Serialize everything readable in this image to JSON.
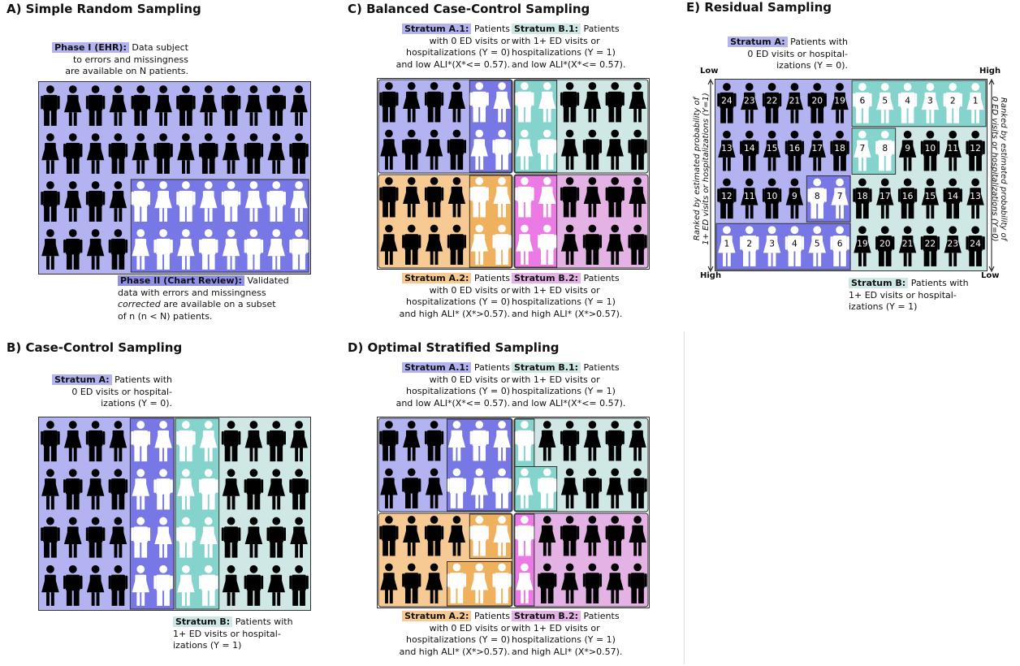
{
  "colors": {
    "blue": "#b3b3f2",
    "blue_dark": "#7777e6",
    "teal": "#cfe8e6",
    "teal_dark": "#85d3cd",
    "orange": "#f6ca92",
    "pink": "#e4b2e4",
    "pink_dark": "#ec7ae4",
    "figure": "#000000",
    "selected": "#ffffff"
  },
  "icons": [
    "person-male-icon",
    "person-female-icon"
  ],
  "panelA": {
    "title": "A) Simple Random Sampling",
    "phase1": {
      "head": "Phase I (EHR):",
      "l1": "Data subject",
      "l2": "to errors and missingness",
      "l3": "are available on N patients."
    },
    "phase2": {
      "head": "Phase II (Chart Review):",
      "l1": "Validated",
      "l2": "data with errors and missingness",
      "l3a": "corrected",
      "l3b": " are available on a subset",
      "l4": "of n (n < N) patients."
    }
  },
  "panelB": {
    "title": "B) Case-Control Sampling",
    "strataA": {
      "head": "Stratum A:",
      "l1": "Patients with",
      "l2": "0 ED visits or hospital-",
      "l3": "izations (Y = 0)."
    },
    "strataB": {
      "head": "Stratum B:",
      "l1": "Patients with",
      "l2": "1+ ED visits or hospital-",
      "l3": "izations (Y = 1)"
    }
  },
  "panelC": {
    "title": "C) Balanced Case-Control Sampling",
    "a1": {
      "head": "Stratum A.1:",
      "l1": "Patients",
      "l2": "with 0 ED visits or",
      "l3": "hospitalizations (Y = 0)",
      "l4": "and low ALI*(X*<= 0.57)."
    },
    "b1": {
      "head": "Stratum B.1:",
      "l1": "Patients",
      "l2": "with 1+ ED visits or",
      "l3": "hospitalizations (Y = 1)",
      "l4": "and low ALI*(X*<= 0.57)."
    },
    "a2": {
      "head": "Stratum A.2:",
      "l1": "Patients",
      "l2": "with 0 ED visits or",
      "l3": "hospitalizations (Y = 0)",
      "l4": "and high ALI* (X*>0.57)."
    },
    "b2": {
      "head": "Stratum B.2:",
      "l1": "Patients",
      "l2": "with 1+ ED visits or",
      "l3": "hospitalizations (Y = 1)",
      "l4": "and high ALI* (X*>0.57)."
    }
  },
  "panelD": {
    "title": "D) Optimal Stratified Sampling",
    "a1": {
      "head": "Stratum A.1:",
      "l1": "Patients",
      "l2": "with 0 ED visits or",
      "l3": "hospitalizations (Y = 0)",
      "l4": "and low ALI*(X*<= 0.57)."
    },
    "b1": {
      "head": "Stratum B.1:",
      "l1": "Patients",
      "l2": "with 1+ ED visits or",
      "l3": "hospitalizations (Y = 1)",
      "l4": "and low ALI*(X*<= 0.57)."
    },
    "a2": {
      "head": "Stratum A.2:",
      "l1": "Patients",
      "l2": "with 0 ED visits or",
      "l3": "hospitalizations (Y = 0)",
      "l4": "and high ALI* (X*>0.57)."
    },
    "b2": {
      "head": "Stratum B.2:",
      "l1": "Patients",
      "l2": "with 1+ ED visits or",
      "l3": "hospitalizations (Y = 1)",
      "l4": "and high ALI* (X*>0.57)."
    }
  },
  "panelE": {
    "title": "E) Residual Sampling",
    "strataA": {
      "head": "Stratum A:",
      "l1": "Patients with",
      "l2": "0 ED visits or hospital-",
      "l3": "izations (Y = 0)."
    },
    "strataB": {
      "head": "Stratum B:",
      "l1": "Patients with",
      "l2": "1+ ED visits or hospital-",
      "l3": "izations (Y = 1)"
    },
    "low_left": "Low",
    "high_right": "High",
    "high_left": "High",
    "low_right": "Low",
    "left_axis_l1": "Ranked by estimated probability of",
    "left_axis_l2": "1+ ED visits or hospitalizations (Y=1)",
    "right_axis_l1": "Ranked by estimated probability of",
    "right_axis_l2": "0 ED visits or hospitalizations (Y=0)",
    "rank_numbers": [
      [
        "24",
        "23",
        "22",
        "21",
        "20",
        "19",
        "6",
        "5",
        "4",
        "3",
        "2",
        "1"
      ],
      [
        "13",
        "14",
        "15",
        "16",
        "17",
        "18",
        "7",
        "8",
        "9",
        "10",
        "11",
        "12"
      ],
      [
        "12",
        "11",
        "10",
        "9",
        "8",
        "7",
        "18",
        "17",
        "16",
        "15",
        "14",
        "13"
      ],
      [
        "1",
        "2",
        "3",
        "4",
        "5",
        "6",
        "19",
        "20",
        "21",
        "22",
        "23",
        "24"
      ]
    ]
  }
}
